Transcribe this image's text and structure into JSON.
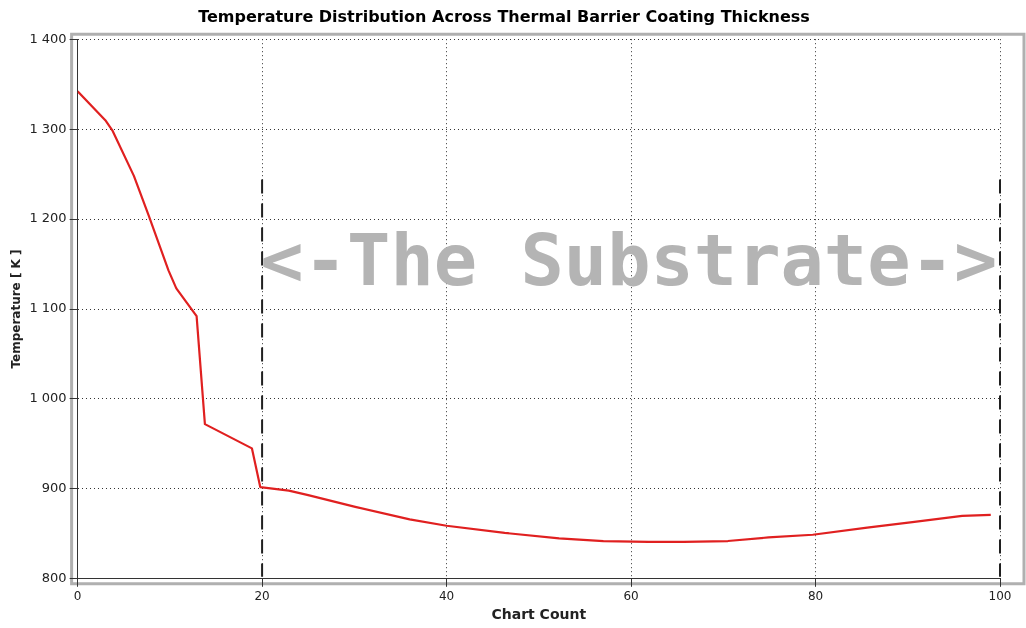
{
  "chart_data": {
    "type": "line",
    "title": "Temperature Distribution Across Thermal Barrier Coating Thickness",
    "xlabel": "Chart Count",
    "ylabel": "Temperature [ K ]",
    "x": [
      0,
      3,
      3.8,
      6.1,
      7.7,
      9.85,
      10.7,
      12.9,
      13.8,
      18.9,
      19.8,
      22.9,
      25,
      30.1,
      36,
      40,
      46.3,
      52.2,
      57,
      61.9,
      65.7,
      70.5,
      74.9,
      79.7,
      85.6,
      90.5,
      95.9,
      99
    ],
    "series": [
      {
        "color": "#e02020",
        "values": [
          1342,
          1310,
          1298,
          1248,
          1204,
          1143,
          1123,
          1092,
          972,
          945,
          902,
          898,
          893,
          880,
          866,
          859,
          851,
          845,
          842,
          841,
          841,
          842,
          846,
          849,
          857,
          863,
          870,
          871
        ]
      }
    ],
    "xlim": [
      0,
      100
    ],
    "xticks": [
      0,
      20,
      40,
      60,
      80,
      100
    ],
    "ylim": [
      800,
      1400
    ],
    "yticks": [
      {
        "value": 800,
        "label": "800"
      },
      {
        "value": 900,
        "label": "900"
      },
      {
        "value": 1000,
        "label": "1 000"
      },
      {
        "value": 1100,
        "label": "1 100"
      },
      {
        "value": 1200,
        "label": "1 200"
      },
      {
        "value": 1300,
        "label": "1 300"
      },
      {
        "value": 1400,
        "label": "1 400"
      }
    ],
    "ref_lines": [
      {
        "axis": "x",
        "value": 20,
        "color": "#202020",
        "line_style": "dashed"
      },
      {
        "axis": "x",
        "value": 100,
        "color": "#202020",
        "line_style": "dashed"
      }
    ],
    "annotations": [
      "<-The Substrate->"
    ],
    "grid": true,
    "legend": false,
    "marker": "none",
    "line_style": "solid"
  }
}
